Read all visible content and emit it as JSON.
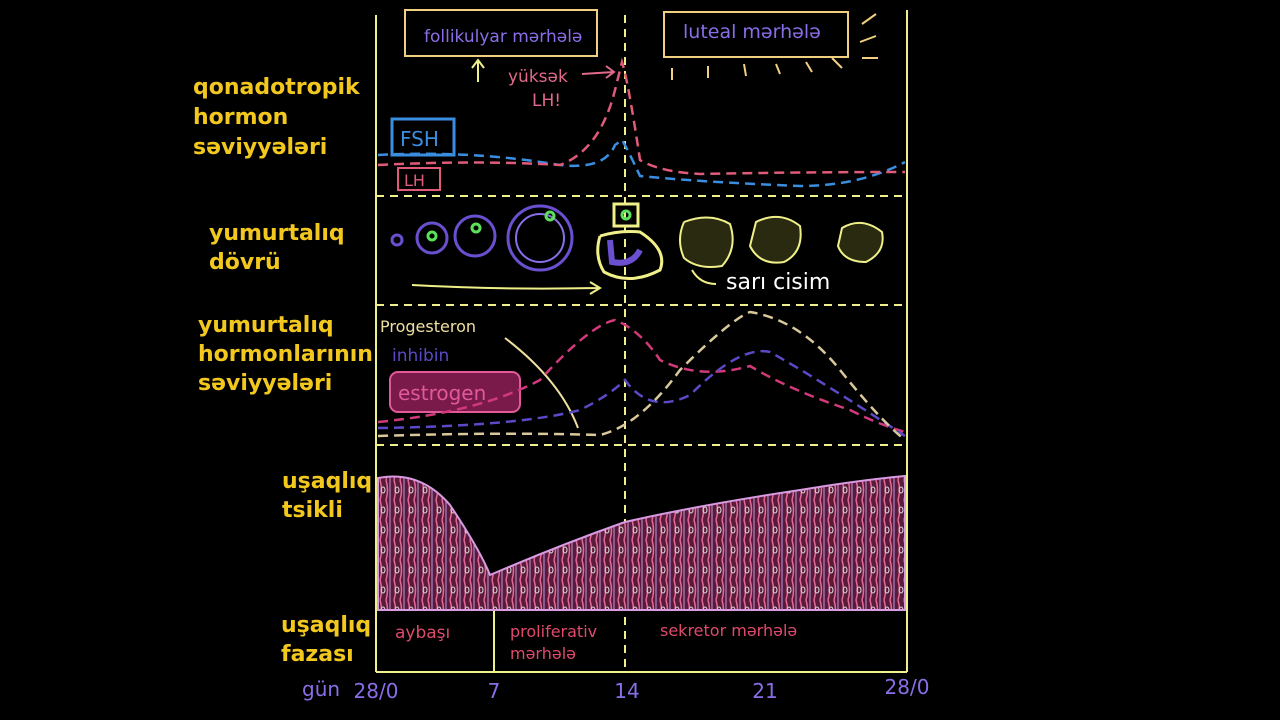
{
  "rows": [
    {
      "label": [
        "qonadotropik",
        "hormon",
        "səviyyələri"
      ]
    },
    {
      "label": [
        "yumurtalıq",
        "dövrü"
      ]
    },
    {
      "label": [
        "yumurtalıq",
        "hormonlarının",
        "səviyyələri"
      ]
    },
    {
      "label": [
        "uşaqlıq",
        "tsikli"
      ]
    },
    {
      "label": [
        "uşaqlıq",
        "fazası"
      ]
    }
  ],
  "day_label": "gün",
  "days": [
    "28/0",
    "7",
    "14",
    "21",
    "28/0"
  ],
  "gonadotropins": {
    "follicular_phase": "follikulyar mərhələ",
    "luteal_phase": "luteal mərhələ",
    "lh_surge": [
      "yüksək",
      "LH!"
    ],
    "fsh": "FSH",
    "lh": "LH"
  },
  "ovary": {
    "corpus_luteum": "sarı cisim"
  },
  "ovarian_hormones": {
    "progesterone": "Progesteron",
    "inhibin": "inhibin",
    "estrogen": "estrogen"
  },
  "uterine_phases": {
    "menstruation": "aybaşı",
    "proliferative": [
      "proliferativ",
      "mərhələ"
    ],
    "secretory": "sekretor mərhələ"
  }
}
